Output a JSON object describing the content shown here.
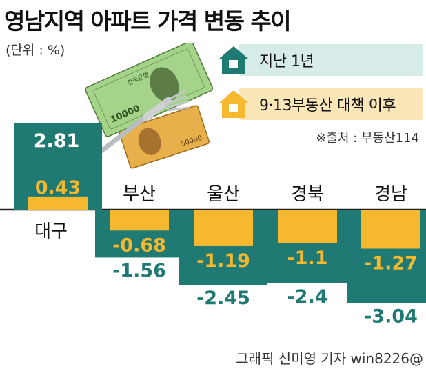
{
  "title": "영남지역 아파트 가격 변동 추이",
  "unit": "(단위 : %)",
  "source": "※출처 : 부동산114",
  "credit": "그래픽 신미영 기자 win8226@",
  "colors": {
    "teal": "#1e7a72",
    "orange": "#f5b82e",
    "teal_pill": "#d7ebe9",
    "orange_pill": "#fbe6b8"
  },
  "chart_data": {
    "type": "bar",
    "categories": [
      "대구",
      "부산",
      "울산",
      "경북",
      "경남"
    ],
    "series": [
      {
        "name": "지난 1년",
        "values": [
          2.81,
          -1.56,
          -2.45,
          -2.4,
          -3.04
        ],
        "color": "#1e7a72"
      },
      {
        "name": "9·13부동산 대책 이후",
        "values": [
          0.43,
          -0.68,
          -1.19,
          -1.1,
          -1.27
        ],
        "color": "#f5b82e"
      }
    ],
    "value_labels": {
      "지난 1년": [
        "2.81",
        "-1.56",
        "-2.45",
        "-2.4",
        "-3.04"
      ],
      "9·13부동산 대책 이후": [
        "0.43",
        "-0.68",
        "-1.19",
        "-1.1",
        "-1.27"
      ]
    },
    "legend": [
      "지난 1년",
      "9·13부동산 대책 이후"
    ],
    "legend_position": "top-right",
    "grid": false
  }
}
